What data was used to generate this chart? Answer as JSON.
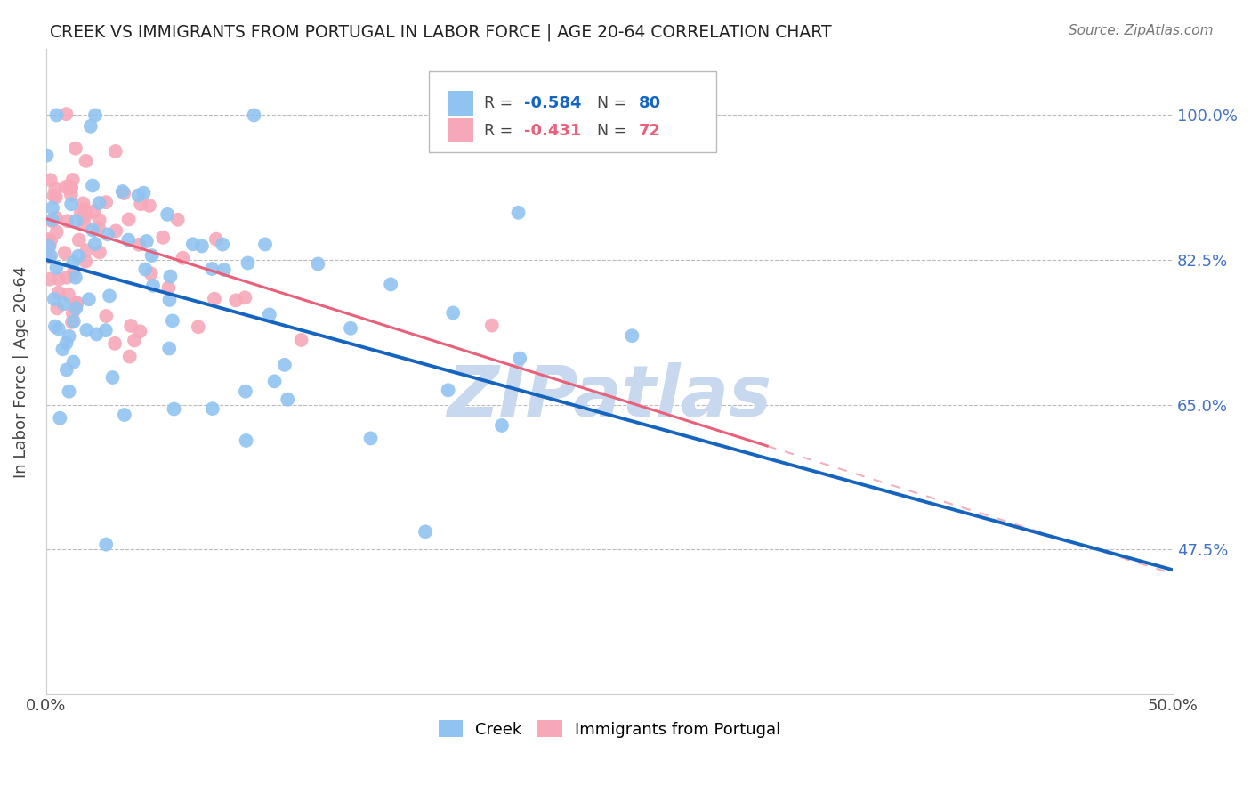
{
  "title": "CREEK VS IMMIGRANTS FROM PORTUGAL IN LABOR FORCE | AGE 20-64 CORRELATION CHART",
  "source": "Source: ZipAtlas.com",
  "xlabel_ticks": [
    "0.0%",
    "",
    "",
    "",
    "",
    "50.0%"
  ],
  "xlabel_vals": [
    0.0,
    0.1,
    0.2,
    0.3,
    0.4,
    0.5
  ],
  "ylabel_ticks": [
    "47.5%",
    "65.0%",
    "82.5%",
    "100.0%"
  ],
  "ylabel_vals": [
    0.475,
    0.65,
    0.825,
    1.0
  ],
  "ylabel_label": "In Labor Force | Age 20-64",
  "xlim": [
    0.0,
    0.5
  ],
  "ylim": [
    0.3,
    1.08
  ],
  "creek_R": -0.584,
  "creek_N": 80,
  "portugal_R": -0.431,
  "portugal_N": 72,
  "creek_color": "#91C3F0",
  "creek_line_color": "#1565C0",
  "portugal_color": "#F7A8B8",
  "portugal_line_color": "#E8607A",
  "right_tick_color": "#4472C4",
  "watermark": "ZIPatlas",
  "watermark_color": "#C8D8EE",
  "grid_color": "#BBBBBB",
  "background_color": "#FFFFFF",
  "creek_line_x0": 0.0,
  "creek_line_y0": 0.825,
  "creek_line_x1": 0.5,
  "creek_line_y1": 0.45,
  "portugal_line_x0": 0.0,
  "portugal_line_y0": 0.875,
  "portugal_line_x1": 0.32,
  "portugal_line_y1": 0.6
}
